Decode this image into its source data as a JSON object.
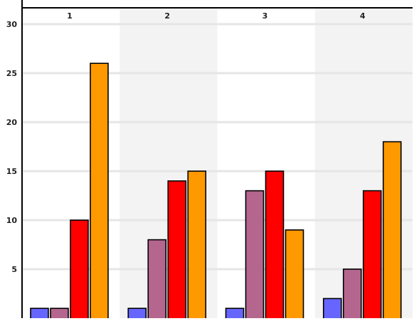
{
  "chart_data": {
    "type": "bar",
    "categories": [
      "1",
      "2",
      "3",
      "4"
    ],
    "series": [
      {
        "color": "#6666ff",
        "values": [
          1,
          1,
          1,
          2
        ]
      },
      {
        "color": "#b5668f",
        "values": [
          1,
          8,
          13,
          5
        ]
      },
      {
        "color": "#ff0000",
        "values": [
          10,
          14,
          15,
          13
        ]
      },
      {
        "color": "#ff9900",
        "values": [
          26,
          15,
          9,
          18
        ]
      }
    ],
    "y_ticks": [
      "5",
      "10",
      "15",
      "20",
      "25",
      "30"
    ],
    "ylim": [
      0,
      32
    ],
    "title": "",
    "xlabel": "",
    "ylabel": "",
    "grid": true,
    "category_labels_position": "top",
    "alternating_column_shading": [
      "#ffffff",
      "#f3f3f3"
    ]
  }
}
